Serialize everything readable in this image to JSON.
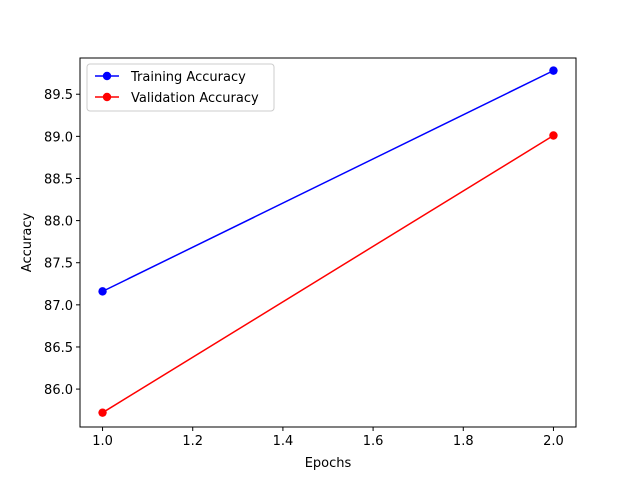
{
  "chart_data": {
    "type": "line",
    "title": "",
    "xlabel": "Epochs",
    "ylabel": "Accuracy",
    "xlim": [
      0.95,
      2.05
    ],
    "ylim": [
      85.55,
      89.93
    ],
    "xticks": [
      1.0,
      1.2,
      1.4,
      1.6,
      1.8,
      2.0
    ],
    "xtick_labels": [
      "1.0",
      "1.2",
      "1.4",
      "1.6",
      "1.8",
      "2.0"
    ],
    "yticks": [
      86.0,
      86.5,
      87.0,
      87.5,
      88.0,
      88.5,
      89.0,
      89.5
    ],
    "ytick_labels": [
      "86.0",
      "86.5",
      "87.0",
      "87.5",
      "88.0",
      "88.5",
      "89.0",
      "89.5"
    ],
    "grid": false,
    "legend_position": "top-left",
    "series": [
      {
        "name": "Training Accuracy",
        "color": "#0000ff",
        "marker": "circle",
        "x": [
          1.0,
          2.0
        ],
        "y": [
          87.16,
          89.78
        ]
      },
      {
        "name": "Validation Accuracy",
        "color": "#ff0000",
        "marker": "circle",
        "x": [
          1.0,
          2.0
        ],
        "y": [
          85.72,
          89.01
        ]
      }
    ]
  }
}
